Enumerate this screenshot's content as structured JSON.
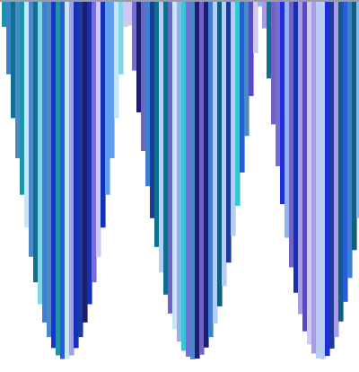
{
  "artwork": {
    "kind": "abstract striped parabolic curtains",
    "drape_count": 3,
    "background_color": "#ffffff",
    "top_border_color": "#9a9aa8",
    "palette": [
      "#1f2fd6",
      "#2a5bd8",
      "#3f7fd0",
      "#5f9ee8",
      "#8fb4f0",
      "#b8ccf4",
      "#a79ce6",
      "#7a6cd8",
      "#5a48c8",
      "#2c2a9a",
      "#1a1f70",
      "#1c3c9c",
      "#0e6f8e",
      "#1d95a8",
      "#37c6d6",
      "#7fd7ea",
      "#c9e6f6",
      "#6f63c6",
      "#1230b8",
      "#4a88c8",
      "#d0c8f0",
      "#0f5f7f"
    ]
  }
}
